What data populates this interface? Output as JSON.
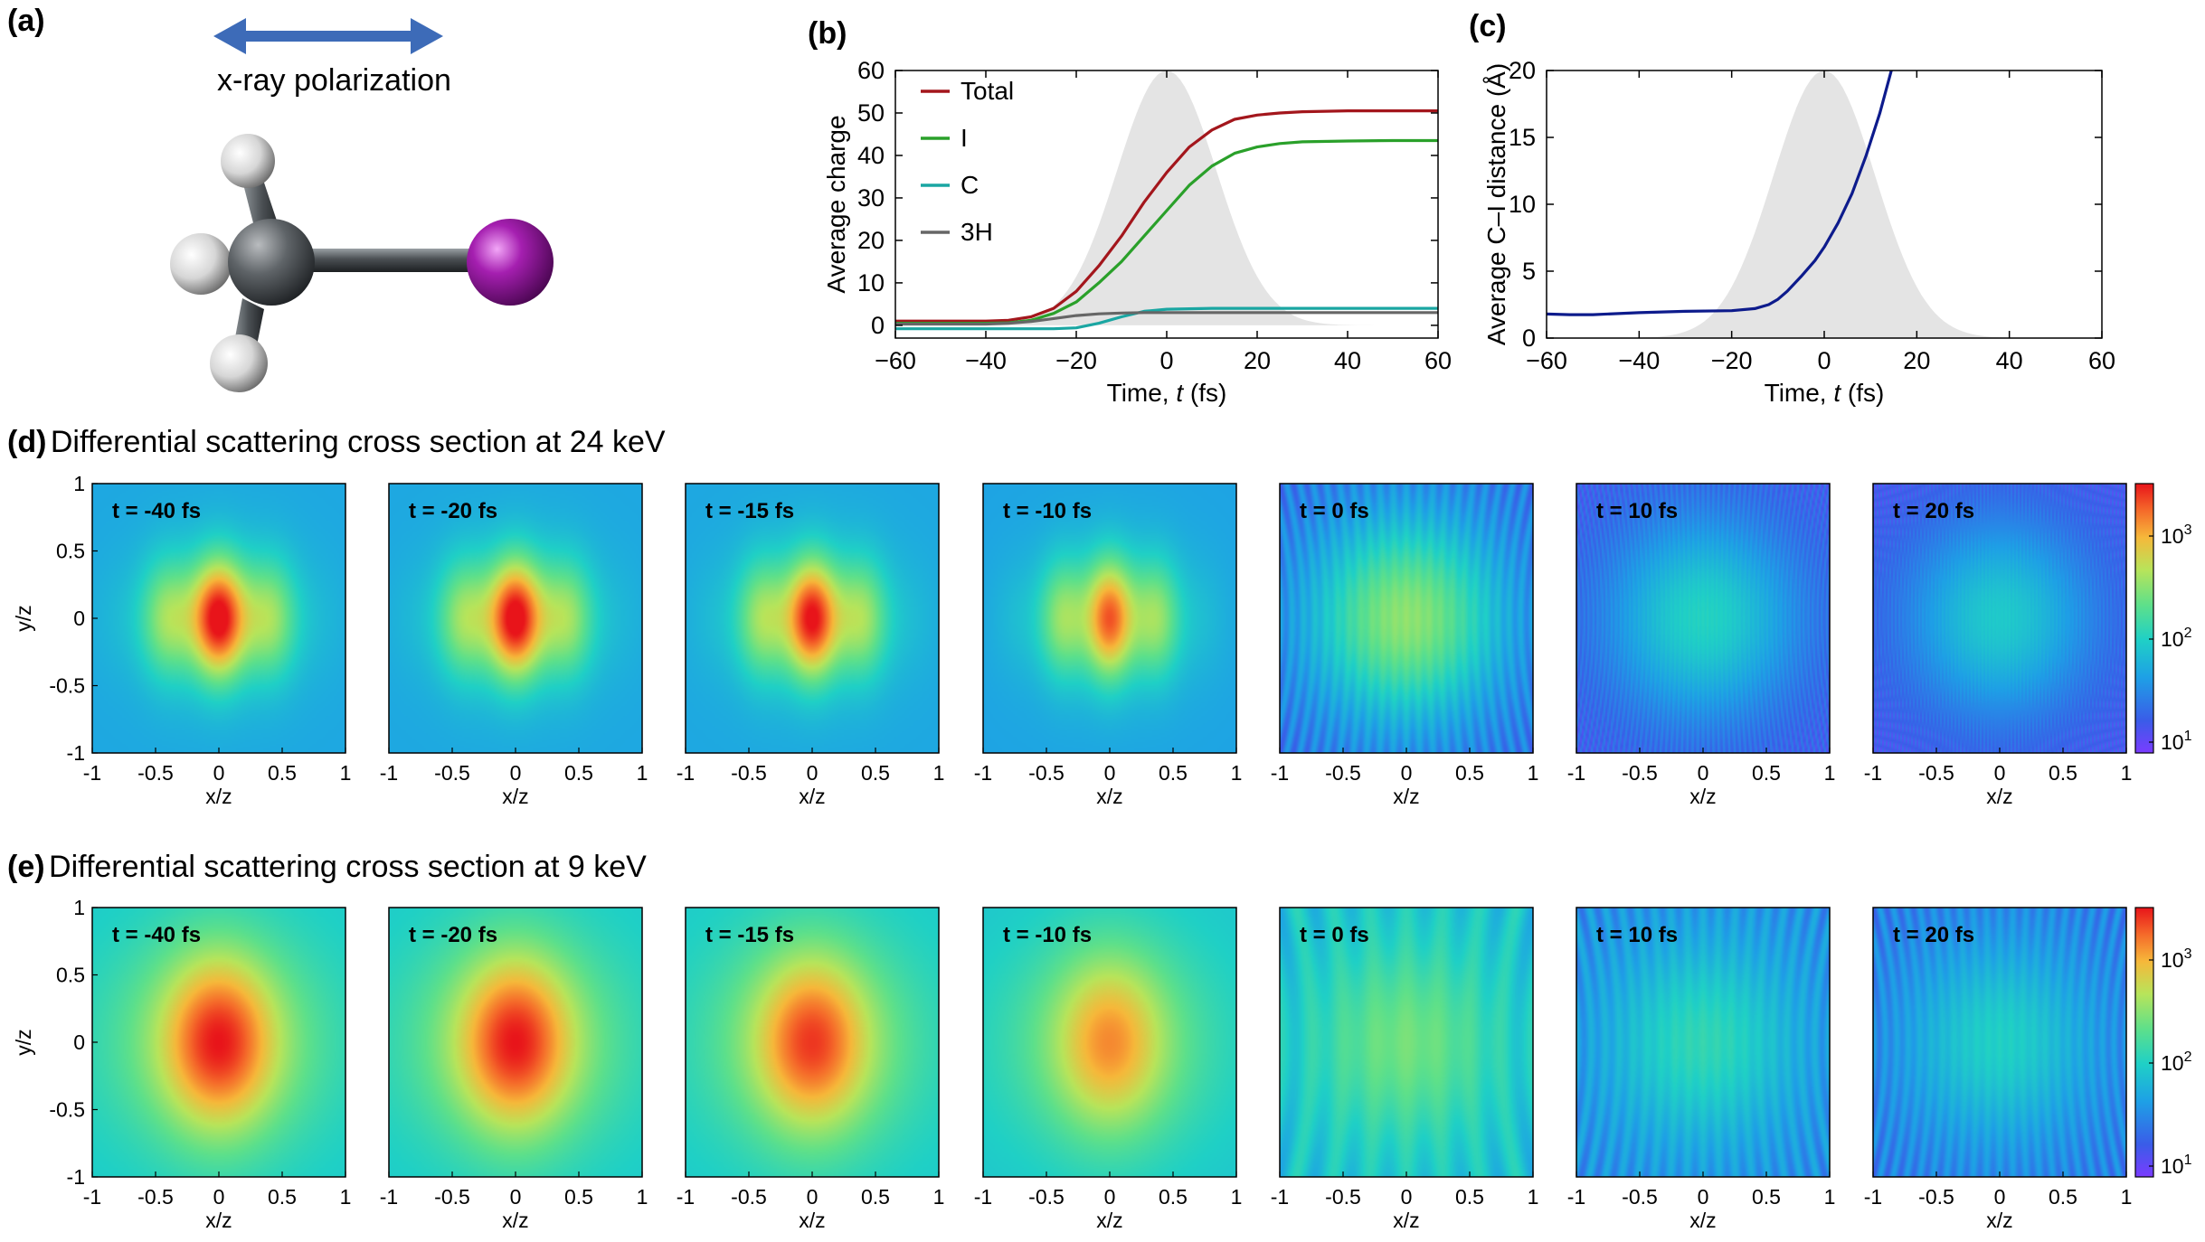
{
  "panel_a": {
    "label": "(a)",
    "polarization_label": "x-ray polarization",
    "colors": {
      "carbon": "#555a5e",
      "hydrogen": "#e8e8e8",
      "iodine": "#9b1fa3",
      "arrow": "#3d6bb8"
    }
  },
  "chart_data": [
    {
      "id": "b",
      "label": "(b)",
      "type": "line",
      "xlabel_pre": "Time, ",
      "xlabel_var": "t",
      "xlabel_post": " (fs)",
      "ylabel": "Average charge",
      "xlim": [
        -60,
        60
      ],
      "ylim": [
        -3,
        60
      ],
      "xticks": [
        -60,
        -40,
        -20,
        0,
        20,
        40,
        60
      ],
      "yticks": [
        0,
        10,
        20,
        30,
        40,
        50,
        60
      ],
      "xticklabels": [
        "−60",
        "−40",
        "−20",
        "0",
        "20",
        "40",
        "60"
      ],
      "yticklabels": [
        "0",
        "10",
        "20",
        "30",
        "40",
        "50",
        "60"
      ],
      "pulse": {
        "center": 0,
        "sigma": 11,
        "peak": 60,
        "color": "#e4e4e4"
      },
      "x": [
        -60,
        -50,
        -40,
        -35,
        -30,
        -25,
        -20,
        -15,
        -10,
        -5,
        0,
        5,
        10,
        15,
        20,
        25,
        30,
        40,
        50,
        60
      ],
      "series": [
        {
          "name": "Total",
          "color": "#a3161c",
          "values": [
            1,
            1,
            1,
            1.2,
            2,
            4,
            8,
            14,
            21,
            29,
            36,
            42,
            46,
            48.5,
            49.5,
            50,
            50.3,
            50.5,
            50.5,
            50.5
          ]
        },
        {
          "name": "I",
          "color": "#2aa02a",
          "values": [
            0.5,
            0.5,
            0.5,
            0.6,
            1.2,
            2.8,
            5.5,
            10,
            15,
            21,
            27,
            33,
            37.5,
            40.5,
            42,
            42.8,
            43.2,
            43.4,
            43.5,
            43.5
          ]
        },
        {
          "name": "C",
          "color": "#1aa6a2",
          "values": [
            -0.8,
            -0.8,
            -0.8,
            -0.8,
            -0.8,
            -0.8,
            -0.6,
            0.5,
            2,
            3.3,
            3.8,
            3.9,
            4,
            4,
            4,
            4,
            4,
            4,
            4,
            4
          ]
        },
        {
          "name": "3H",
          "color": "#666666",
          "values": [
            0.3,
            0.3,
            0.3,
            0.5,
            0.9,
            1.6,
            2.3,
            2.7,
            2.9,
            3,
            3,
            3,
            3,
            3,
            3,
            3,
            3,
            3,
            3,
            3
          ]
        }
      ]
    },
    {
      "id": "c",
      "label": "(c)",
      "type": "line",
      "xlabel_pre": "Time, ",
      "xlabel_var": "t",
      "xlabel_post": " (fs)",
      "ylabel": "Average C–I distance (Å)",
      "xlim": [
        -60,
        60
      ],
      "ylim": [
        0,
        20
      ],
      "xticks": [
        -60,
        -40,
        -20,
        0,
        20,
        40,
        60
      ],
      "yticks": [
        0,
        5,
        10,
        15,
        20
      ],
      "xticklabels": [
        "−60",
        "−40",
        "−20",
        "0",
        "20",
        "40",
        "60"
      ],
      "yticklabels": [
        "0",
        "5",
        "10",
        "15",
        "20"
      ],
      "pulse": {
        "center": 0,
        "sigma": 11,
        "peak": 20,
        "color": "#e4e4e4"
      },
      "x": [
        -60,
        -55,
        -50,
        -40,
        -30,
        -20,
        -15,
        -12,
        -10,
        -8,
        -5,
        -2,
        0,
        3,
        6,
        9,
        12,
        14.5
      ],
      "series": [
        {
          "name": "C–I distance",
          "color": "#0d1b8c",
          "values": [
            1.8,
            1.75,
            1.75,
            1.9,
            2,
            2.05,
            2.2,
            2.5,
            2.9,
            3.5,
            4.6,
            5.8,
            6.8,
            8.6,
            10.8,
            13.6,
            16.8,
            20
          ]
        }
      ]
    }
  ],
  "heatmaps": {
    "xlabel": "x/z",
    "ylabel": "y/z",
    "xticklabels": [
      "-1",
      "-0.5",
      "0",
      "0.5",
      "1"
    ],
    "yticklabels": [
      "1",
      "0.5",
      "0",
      "-0.5",
      "-1"
    ],
    "colorbar_ticks_mantissa": [
      "10",
      "10",
      "10"
    ],
    "colorbar_ticks_exp": [
      "3",
      "2",
      "1"
    ],
    "rows": [
      {
        "id": "d",
        "label": "(d)",
        "title": "Differential scattering cross section at 24 keV",
        "panels": [
          {
            "time_label": "t = -40 fs",
            "style": "blob",
            "intensity": 1.0,
            "bg": 0.3,
            "fringes": 4.0
          },
          {
            "time_label": "t = -20 fs",
            "style": "blob",
            "intensity": 1.0,
            "bg": 0.3,
            "fringes": 4.0
          },
          {
            "time_label": "t = -15 fs",
            "style": "blob",
            "intensity": 0.97,
            "bg": 0.3,
            "fringes": 4.2
          },
          {
            "time_label": "t = -10 fs",
            "style": "blob",
            "intensity": 0.88,
            "bg": 0.29,
            "fringes": 4.6
          },
          {
            "time_label": "t = 0 fs",
            "style": "fan",
            "intensity": 0.62,
            "bg": 0.18,
            "fringes": 22
          },
          {
            "time_label": "t = 10 fs",
            "style": "fan",
            "intensity": 0.43,
            "bg": 0.12,
            "fringes": 55
          },
          {
            "time_label": "t = 20 fs",
            "style": "fan",
            "intensity": 0.4,
            "bg": 0.1,
            "fringes": 75
          }
        ]
      },
      {
        "id": "e",
        "label": "(e)",
        "title": "Differential scattering cross section at 9 keV",
        "panels": [
          {
            "time_label": "t = -40 fs",
            "style": "soft",
            "intensity": 1.0,
            "bg": 0.4,
            "fringes": 1.4
          },
          {
            "time_label": "t = -20 fs",
            "style": "soft",
            "intensity": 1.0,
            "bg": 0.4,
            "fringes": 1.4
          },
          {
            "time_label": "t = -15 fs",
            "style": "soft",
            "intensity": 0.96,
            "bg": 0.4,
            "fringes": 1.6
          },
          {
            "time_label": "t = -10 fs",
            "style": "soft",
            "intensity": 0.86,
            "bg": 0.39,
            "fringes": 1.8
          },
          {
            "time_label": "t = 0 fs",
            "style": "fan",
            "intensity": 0.58,
            "bg": 0.37,
            "fringes": 8
          },
          {
            "time_label": "t = 10 fs",
            "style": "fan",
            "intensity": 0.46,
            "bg": 0.24,
            "fringes": 18
          },
          {
            "time_label": "t = 20 fs",
            "style": "fan",
            "intensity": 0.42,
            "bg": 0.2,
            "fringes": 22
          }
        ]
      }
    ]
  }
}
